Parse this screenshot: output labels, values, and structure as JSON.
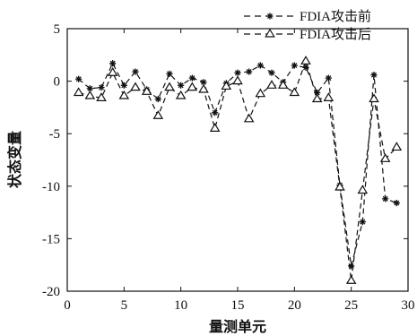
{
  "chart_data": {
    "type": "line",
    "title": "",
    "xlabel": "量测单元",
    "ylabel": "状态变量",
    "xlim": [
      0,
      30
    ],
    "ylim": [
      -20,
      5
    ],
    "xticks": [
      0,
      5,
      10,
      15,
      20,
      25,
      30
    ],
    "yticks": [
      5,
      0,
      -5,
      -10,
      -15,
      -20
    ],
    "xtick_labels": [
      "0",
      "5",
      "10",
      "15",
      "20",
      "25",
      "30"
    ],
    "ytick_labels": [
      "5",
      "0",
      "-5",
      "-10",
      "-15",
      "-20"
    ],
    "grid": false,
    "legend_position": "top-right",
    "x": [
      1,
      2,
      3,
      4,
      5,
      6,
      7,
      8,
      9,
      10,
      11,
      12,
      13,
      14,
      15,
      16,
      17,
      18,
      19,
      20,
      21,
      22,
      23,
      24,
      25,
      26,
      27,
      28,
      29
    ],
    "series": [
      {
        "name": "FDIA攻击前",
        "marker": "star",
        "line": "dashed",
        "color": "#111111",
        "values": [
          0.2,
          -0.7,
          -0.6,
          1.7,
          -0.4,
          0.9,
          -0.8,
          -1.7,
          0.7,
          -0.4,
          0.3,
          -0.1,
          -3.0,
          -0.2,
          0.8,
          0.9,
          1.5,
          0.8,
          -0.1,
          1.5,
          1.3,
          -1.1,
          0.3,
          -9.9,
          -17.6,
          -13.4,
          0.6,
          -11.2,
          -11.6
        ]
      },
      {
        "name": "FDIA攻击后",
        "marker": "triangle",
        "line": "dashed",
        "color": "#111111",
        "values": [
          -1.1,
          -1.4,
          -1.6,
          0.8,
          -1.4,
          -0.6,
          -1.0,
          -3.3,
          -0.6,
          -1.4,
          -0.6,
          -0.8,
          -4.5,
          -0.5,
          0.0,
          -3.6,
          -1.2,
          -0.4,
          -0.4,
          -1.1,
          1.9,
          -1.7,
          -1.6,
          -10.1,
          -19.0,
          -10.4,
          -1.7,
          -7.4,
          -6.3
        ]
      }
    ]
  }
}
